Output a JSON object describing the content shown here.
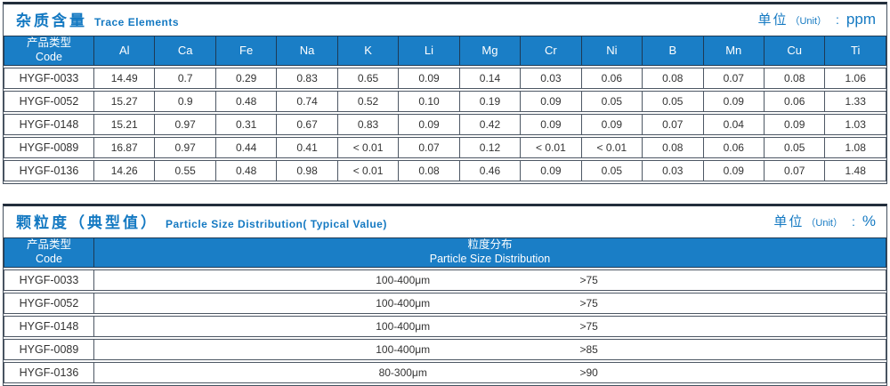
{
  "colors": {
    "accent_blue": "#1479c2",
    "header_bg": "#1a7ec6",
    "header_border": "#1e3a55",
    "grid_border": "#4d5764",
    "text": "#333333"
  },
  "trace": {
    "title_zh": "杂质含量",
    "title_en": "Trace Elements",
    "unit": {
      "zh": "单位",
      "paren": "（Unit）",
      "colon": ":",
      "value": "ppm"
    },
    "table": {
      "code_header_zh": "产品类型",
      "code_header_en": "Code",
      "columns": [
        "Al",
        "Ca",
        "Fe",
        "Na",
        "K",
        "Li",
        "Mg",
        "Cr",
        "Ni",
        "B",
        "Mn",
        "Cu",
        "Ti"
      ],
      "rows": [
        {
          "code": "HYGF-0033",
          "values": [
            "14.49",
            "0.7",
            "0.29",
            "0.83",
            "0.65",
            "0.09",
            "0.14",
            "0.03",
            "0.06",
            "0.08",
            "0.07",
            "0.08",
            "1.06"
          ]
        },
        {
          "code": "HYGF-0052",
          "values": [
            "15.27",
            "0.9",
            "0.48",
            "0.74",
            "0.52",
            "0.10",
            "0.19",
            "0.09",
            "0.05",
            "0.05",
            "0.09",
            "0.06",
            "1.33"
          ]
        },
        {
          "code": "HYGF-0148",
          "values": [
            "15.21",
            "0.97",
            "0.31",
            "0.67",
            "0.83",
            "0.09",
            "0.42",
            "0.09",
            "0.09",
            "0.07",
            "0.04",
            "0.09",
            "1.03"
          ]
        },
        {
          "code": "HYGF-0089",
          "values": [
            "16.87",
            "0.97",
            "0.44",
            "0.41",
            "< 0.01",
            "0.07",
            "0.12",
            "< 0.01",
            "< 0.01",
            "0.08",
            "0.06",
            "0.05",
            "1.08"
          ]
        },
        {
          "code": "HYGF-0136",
          "values": [
            "14.26",
            "0.55",
            "0.48",
            "0.98",
            "< 0.01",
            "0.08",
            "0.46",
            "0.09",
            "0.05",
            "0.03",
            "0.09",
            "0.07",
            "1.48"
          ]
        }
      ]
    }
  },
  "particle": {
    "title_zh": "颗粒度（典型值）",
    "title_en": "Particle Size Distribution( Typical Value)",
    "unit": {
      "zh": "单位",
      "paren": "（Unit）",
      "colon": ":",
      "value": "%"
    },
    "table": {
      "code_header_zh": "产品类型",
      "code_header_en": "Code",
      "dist_header_zh": "粒度分布",
      "dist_header_en": "Particle Size  Distribution",
      "rows": [
        {
          "code": "HYGF-0033",
          "range": "100-400μm",
          "value": ">75"
        },
        {
          "code": "HYGF-0052",
          "range": "100-400μm",
          "value": ">75"
        },
        {
          "code": "HYGF-0148",
          "range": "100-400μm",
          "value": ">75"
        },
        {
          "code": "HYGF-0089",
          "range": "100-400μm",
          "value": ">85"
        },
        {
          "code": "HYGF-0136",
          "range": "80-300μm",
          "value": ">90"
        }
      ]
    }
  }
}
